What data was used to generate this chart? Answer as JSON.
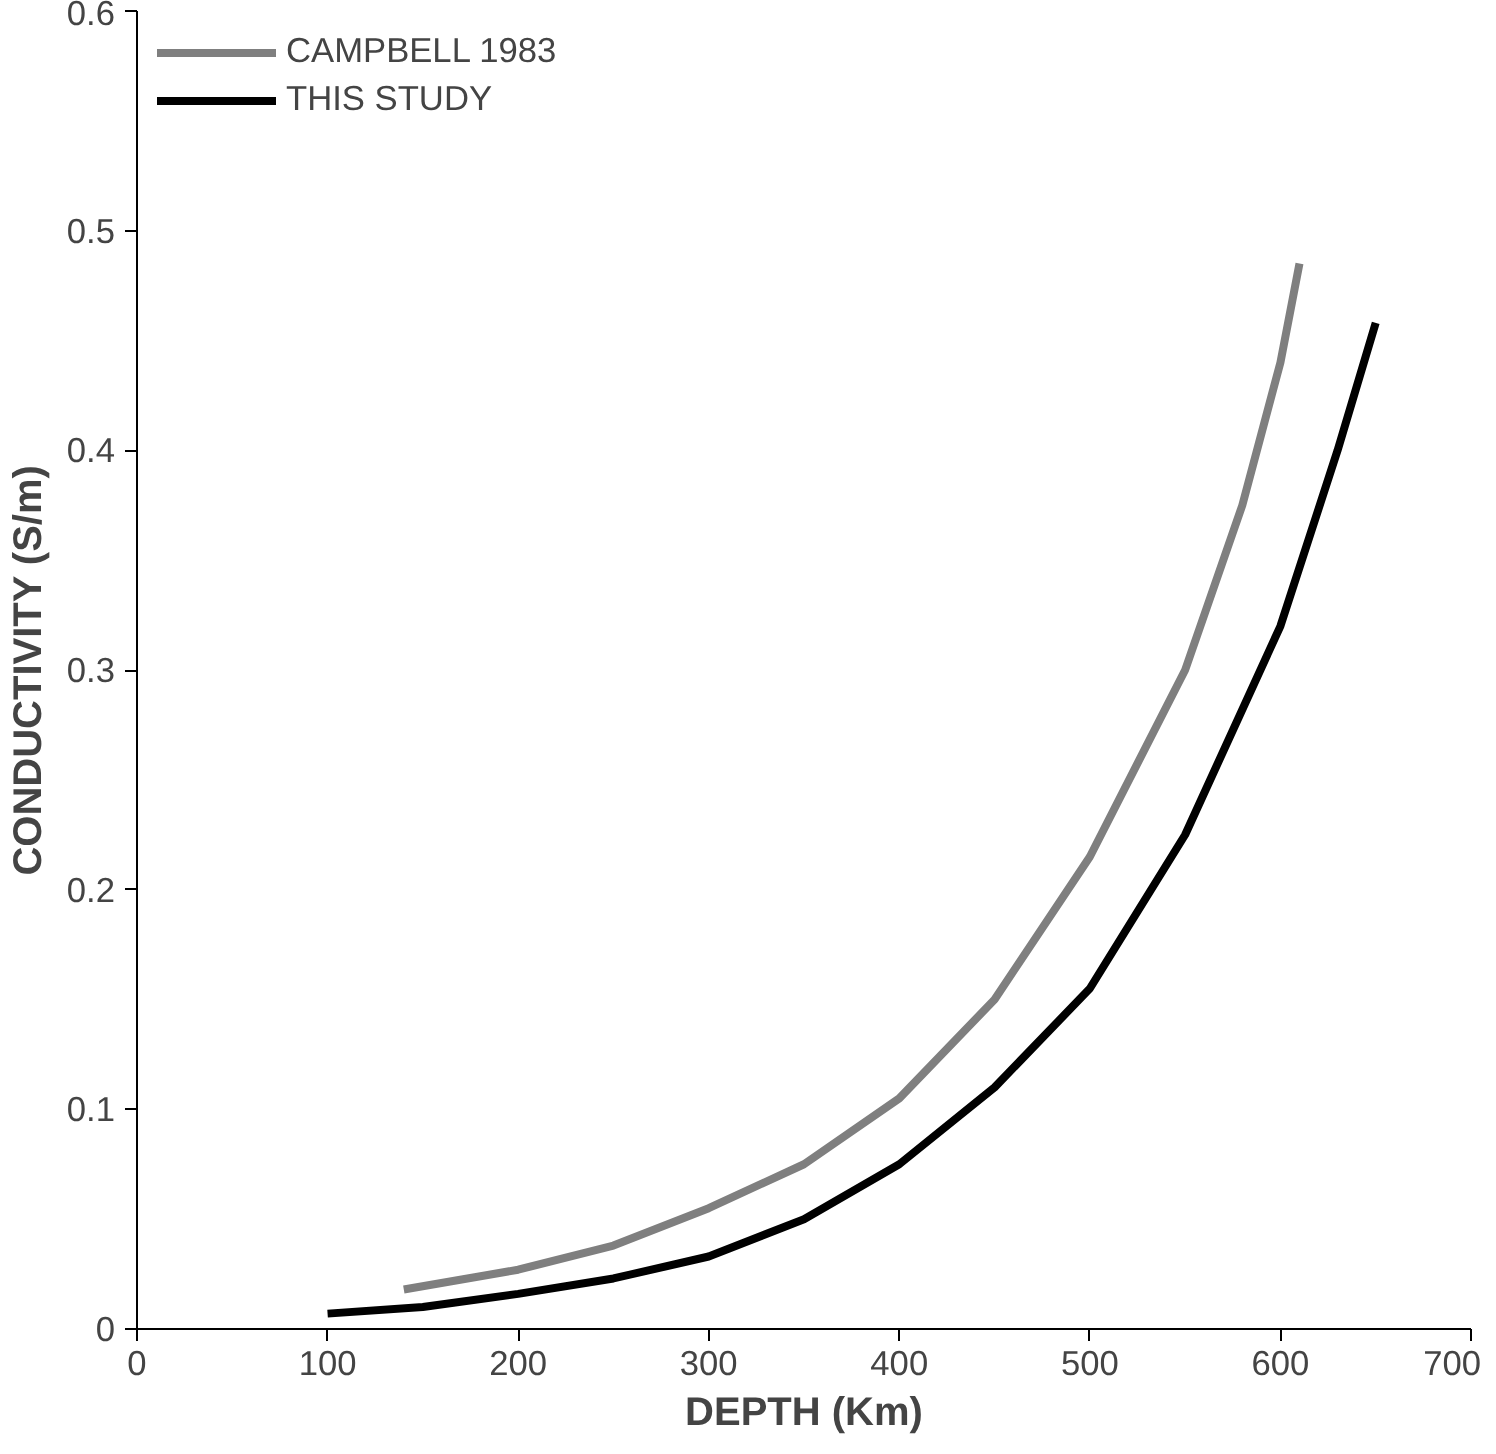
{
  "chart_data": {
    "type": "line",
    "xlabel": "DEPTH (Km)",
    "ylabel": "CONDUCTIVITY (S/m)",
    "xlim": [
      0,
      700
    ],
    "ylim": [
      0,
      0.6
    ],
    "xticks": [
      0,
      100,
      200,
      300,
      400,
      500,
      600,
      700
    ],
    "yticks": [
      0,
      0.1,
      0.2,
      0.3,
      0.4,
      0.5,
      0.6
    ],
    "grid": false,
    "legend": "top left",
    "line_style": "solid",
    "series": [
      {
        "name": "CAMPBELL 1983",
        "color": "#7f7f7f",
        "x": [
          140,
          200,
          250,
          300,
          350,
          400,
          450,
          500,
          550,
          580,
          600,
          610
        ],
        "values": [
          0.018,
          0.027,
          0.038,
          0.055,
          0.075,
          0.105,
          0.15,
          0.215,
          0.3,
          0.375,
          0.44,
          0.485
        ]
      },
      {
        "name": "THIS STUDY",
        "color": "#000000",
        "x": [
          100,
          150,
          200,
          250,
          300,
          350,
          400,
          450,
          500,
          550,
          600,
          630,
          650
        ],
        "values": [
          0.007,
          0.01,
          0.016,
          0.023,
          0.033,
          0.05,
          0.075,
          0.11,
          0.155,
          0.225,
          0.32,
          0.4,
          0.458
        ]
      }
    ]
  }
}
